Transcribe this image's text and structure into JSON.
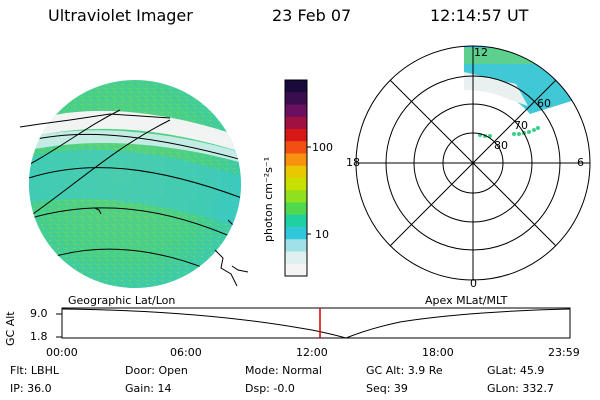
{
  "header": {
    "instrument": "Ultraviolet Imager",
    "date": "23 Feb 07",
    "time": "12:14:57 UT"
  },
  "colorbar": {
    "unit": "photon cm⁻²s⁻¹",
    "ticks": [
      "100",
      "10"
    ],
    "colors": [
      "#1a0a3a",
      "#3a0e4e",
      "#6a1060",
      "#a01040",
      "#d81818",
      "#f05010",
      "#f89010",
      "#e8c800",
      "#c8e000",
      "#90e020",
      "#50d850",
      "#20d0a0",
      "#30c8d8",
      "#a0e0e8",
      "#e0f0f0",
      "#f4f4f4"
    ]
  },
  "left_map": {
    "label": "Geographic Lat/Lon"
  },
  "polar_plot": {
    "label": "Apex MLat/MLT",
    "mlt_labels": [
      "12",
      "18",
      "6",
      "0"
    ],
    "mlat_labels": [
      "60",
      "70",
      "80"
    ]
  },
  "timeline": {
    "y_axis_label": "GC Alt",
    "y_ticks": [
      "9.0",
      "1.8"
    ],
    "x_ticks": [
      "00:00",
      "06:00",
      "12:00",
      "18:00",
      "23:59"
    ],
    "marker_color": "#d00000"
  },
  "info": {
    "flt": "Flt: LBHL",
    "door": "Door: Open",
    "mode": "Mode: Normal",
    "gc_alt": "GC Alt: 3.9 Re",
    "glat": "GLat: 45.9",
    "ip": "IP: 36.0",
    "gain": "Gain: 14",
    "dsp": "Dsp: -0.0",
    "seq": "Seq: 39",
    "glon": "GLon: 332.7"
  }
}
